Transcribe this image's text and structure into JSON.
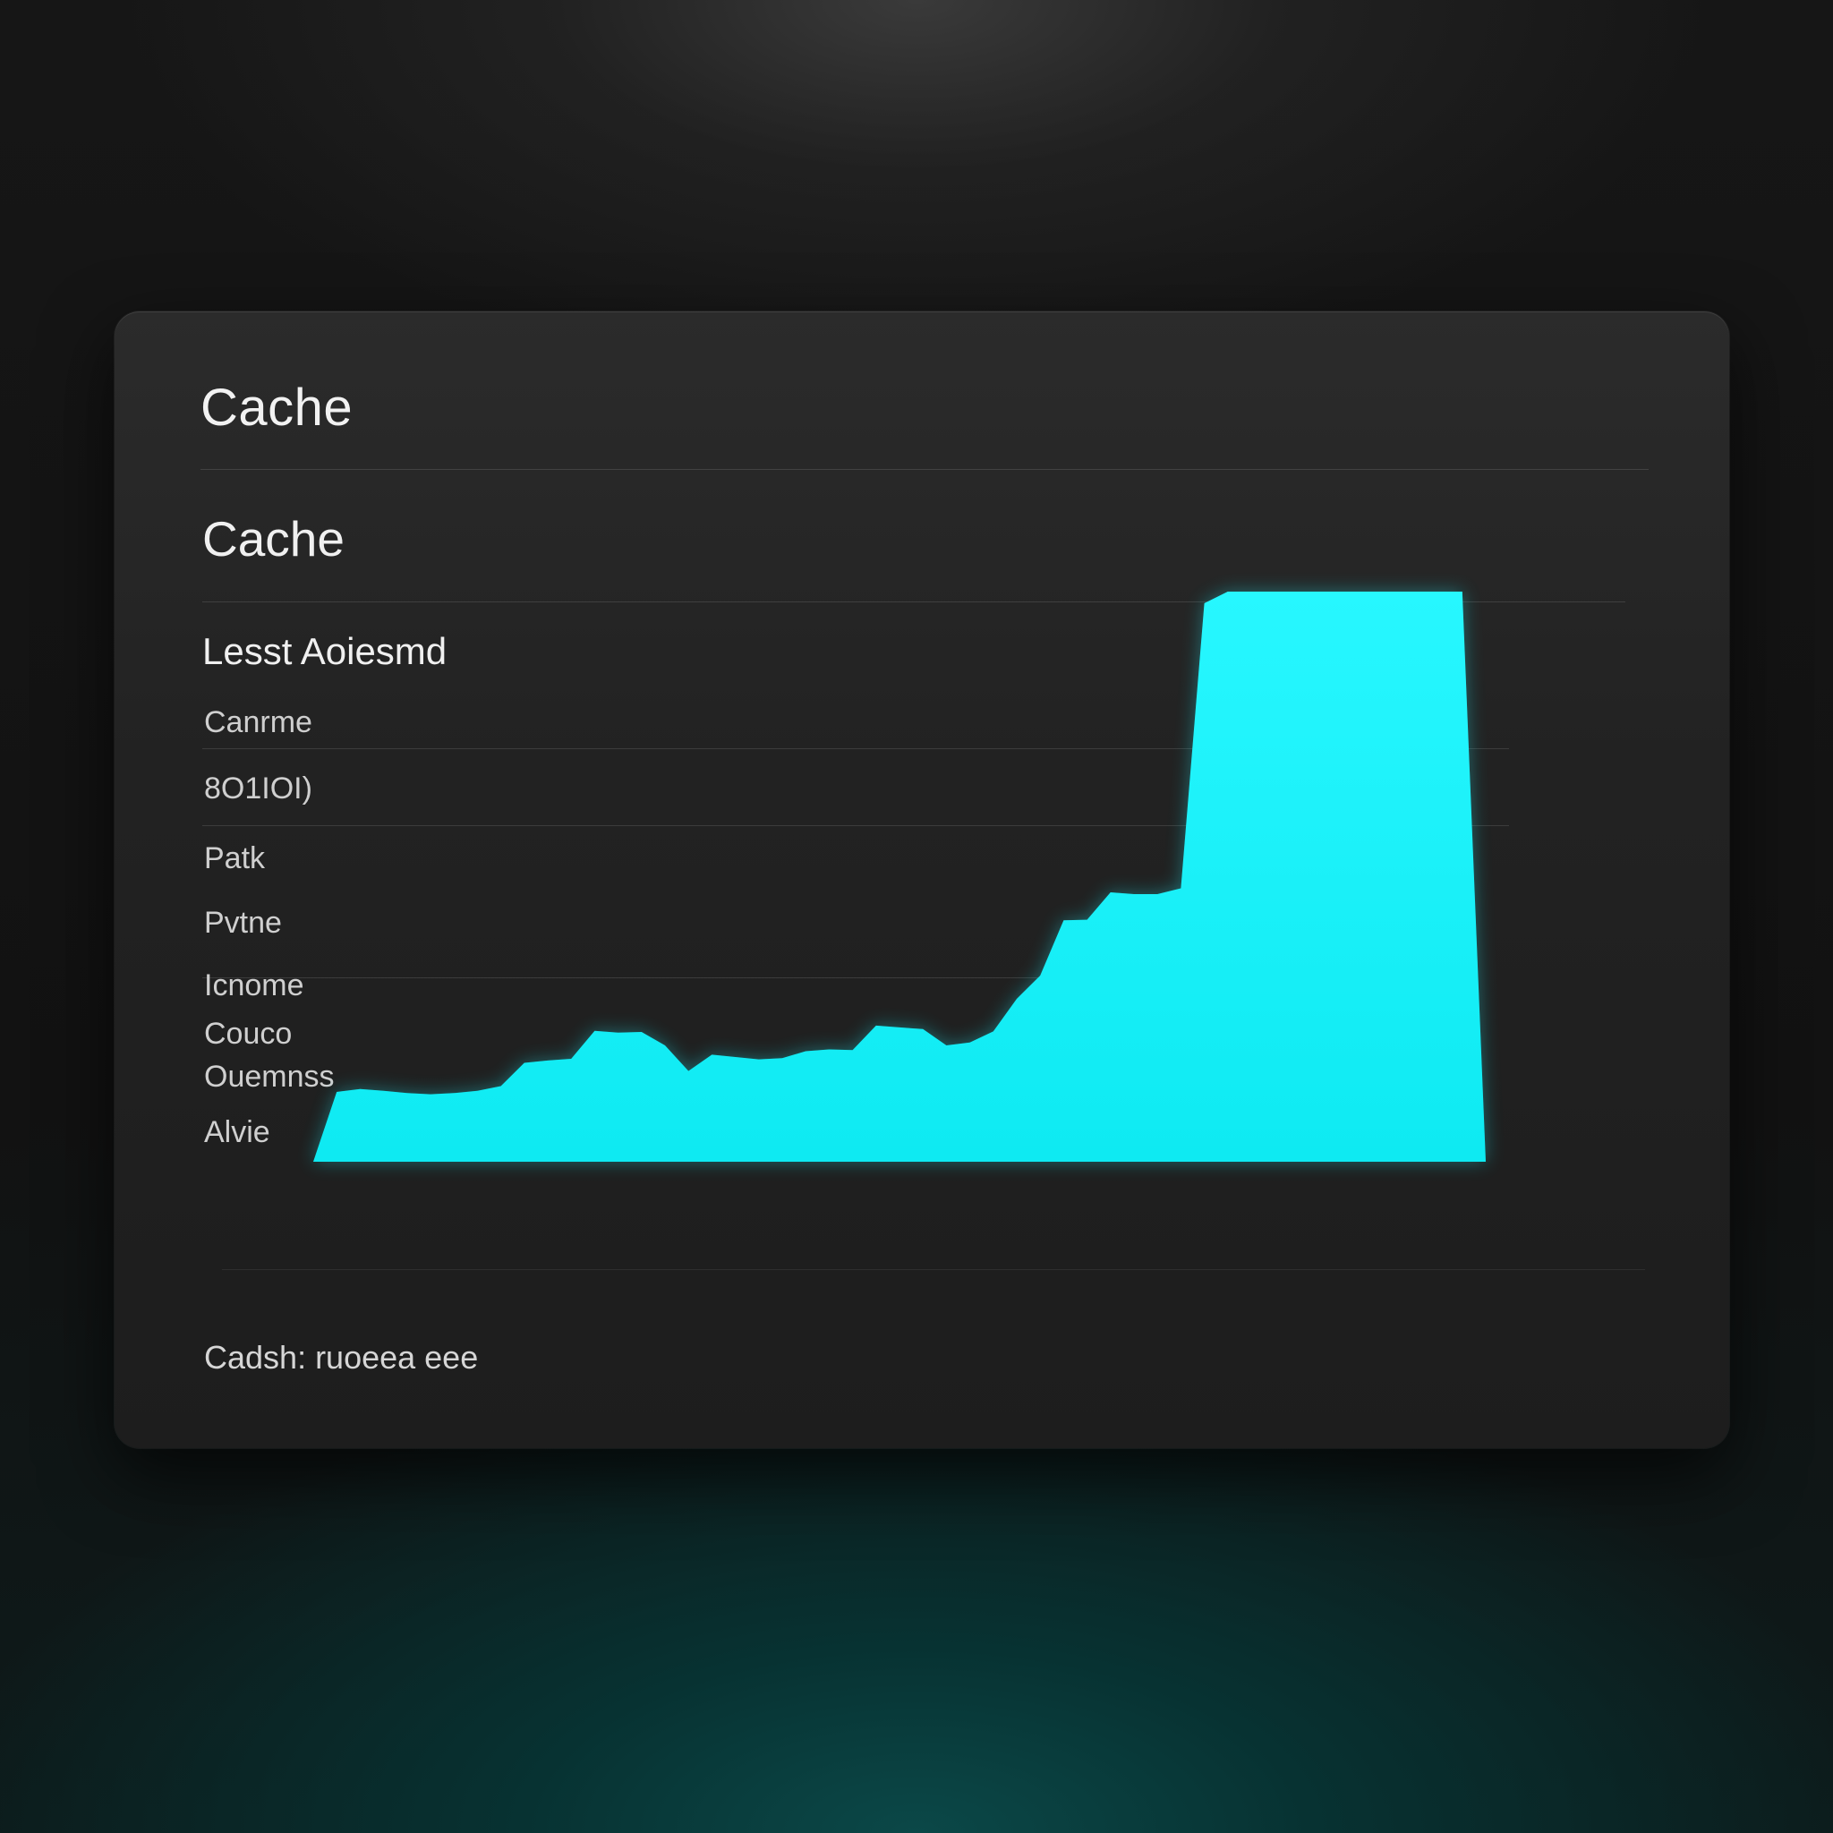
{
  "card": {
    "title": "Cache",
    "subtitle": "Cache",
    "heading": "Lesst Aoiesmd",
    "row_labels": [
      "Canrme",
      "8O1IOI)",
      "Patk",
      "Pvtne",
      "Icnome",
      "Couco",
      "Ouemnss",
      "Alvie"
    ],
    "footer": "Cadsh: ruoeea eee"
  },
  "colors": {
    "accent": "#17f4ff",
    "card_background": "#242424",
    "page_background": "#141414"
  },
  "chart_data": {
    "type": "area",
    "title": "Cache",
    "xlabel": "",
    "ylabel": "",
    "x": [
      0,
      1,
      2,
      3,
      4,
      5,
      6,
      7,
      8,
      9,
      10,
      11,
      12,
      13,
      14,
      15,
      16,
      17,
      18,
      19,
      20,
      21,
      22,
      23,
      24,
      25,
      26,
      27,
      28,
      29,
      30,
      31,
      32,
      33,
      34,
      35,
      36,
      37,
      38,
      39,
      40,
      41,
      42,
      43,
      44,
      45,
      46,
      47,
      48,
      49,
      50
    ],
    "series": [
      {
        "values": [
          0,
          12,
          12.5,
          12.2,
          11.8,
          11.6,
          11.8,
          12.2,
          13,
          17,
          17.4,
          17.7,
          22.5,
          22.2,
          22.3,
          20,
          15.6,
          18.4,
          18,
          17.6,
          17.8,
          19,
          19.3,
          19.2,
          23.4,
          23.1,
          22.8,
          20,
          20.5,
          22.4,
          28,
          32,
          41.5,
          41.6,
          46.3,
          46,
          46,
          47,
          96,
          98,
          98,
          98,
          98,
          98,
          98,
          98,
          98,
          98,
          98,
          98,
          0
        ]
      }
    ],
    "ylim": [
      0,
      100
    ],
    "grid": true,
    "legend": "none"
  }
}
